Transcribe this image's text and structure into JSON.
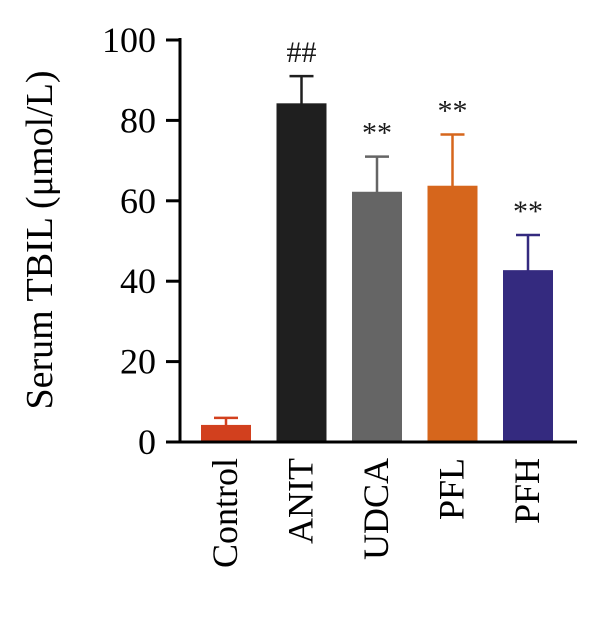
{
  "chart_data": {
    "type": "bar",
    "title": "",
    "xlabel": "",
    "ylabel": "Serum TBIL (μmol/L)",
    "ylim": [
      0,
      100
    ],
    "yticks": [
      0,
      20,
      40,
      60,
      80,
      100
    ],
    "grid": false,
    "categories": [
      "Control",
      "ANIT",
      "UDCA",
      "PFL",
      "PFH"
    ],
    "values": [
      4,
      84,
      62,
      63.5,
      42.5
    ],
    "errors": [
      2,
      7,
      9,
      13,
      9
    ],
    "annotations": [
      "",
      "##",
      "**",
      "**",
      "**"
    ],
    "colors": [
      "#d2401e",
      "#1f1f1f",
      "#656565",
      "#d6661c",
      "#342a7f"
    ]
  }
}
